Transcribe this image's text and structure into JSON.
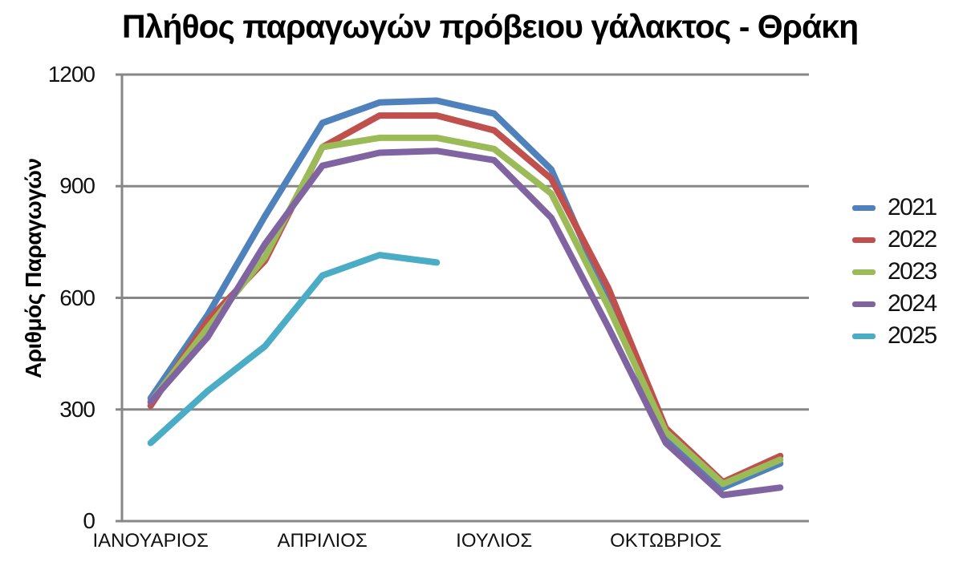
{
  "page": {
    "background": "#ffffff"
  },
  "chart_data": {
    "type": "line",
    "title": "Πλήθος παραγωγών πρόβειου γάλακτος - Θράκη",
    "xlabel": "",
    "ylabel": "Αριθμός Παραγωγών",
    "ylim": [
      0,
      1200
    ],
    "y_ticks": [
      0,
      300,
      600,
      900,
      1200
    ],
    "x_slots": 12,
    "x_tick_labels": [
      {
        "label": "ΙΑΝΟΥΑΡΙΟΣ",
        "month_index": 0
      },
      {
        "label": "ΑΠΡΙΛΙΟΣ",
        "month_index": 3
      },
      {
        "label": "ΙΟΥΛΙΟΣ",
        "month_index": 6
      },
      {
        "label": "ΟΚΤΩΒΡΙΟΣ",
        "month_index": 9
      }
    ],
    "grid": "horizontal",
    "grid_color": "#878787",
    "axis_color": "#878787",
    "legend_position": "right",
    "legend_labels": [
      "2021",
      "2022",
      "2023",
      "2024",
      "2025"
    ],
    "series": [
      {
        "name": "2021",
        "color": "#4F81BD",
        "values": [
          330,
          555,
          820,
          1070,
          1125,
          1130,
          1095,
          945,
          595,
          220,
          90,
          155
        ]
      },
      {
        "name": "2022",
        "color": "#C0504D",
        "values": [
          310,
          540,
          700,
          1005,
          1090,
          1090,
          1050,
          920,
          625,
          250,
          105,
          175
        ]
      },
      {
        "name": "2023",
        "color": "#9BBB59",
        "values": [
          320,
          520,
          710,
          1005,
          1030,
          1030,
          1000,
          880,
          575,
          240,
          100,
          165
        ]
      },
      {
        "name": "2024",
        "color": "#8064A2",
        "values": [
          320,
          495,
          745,
          955,
          990,
          995,
          970,
          815,
          520,
          210,
          70,
          90
        ]
      },
      {
        "name": "2025",
        "color": "#4BACC6",
        "values": [
          210,
          350,
          470,
          660,
          715,
          695,
          null,
          null,
          null,
          null,
          null,
          null
        ]
      }
    ]
  }
}
